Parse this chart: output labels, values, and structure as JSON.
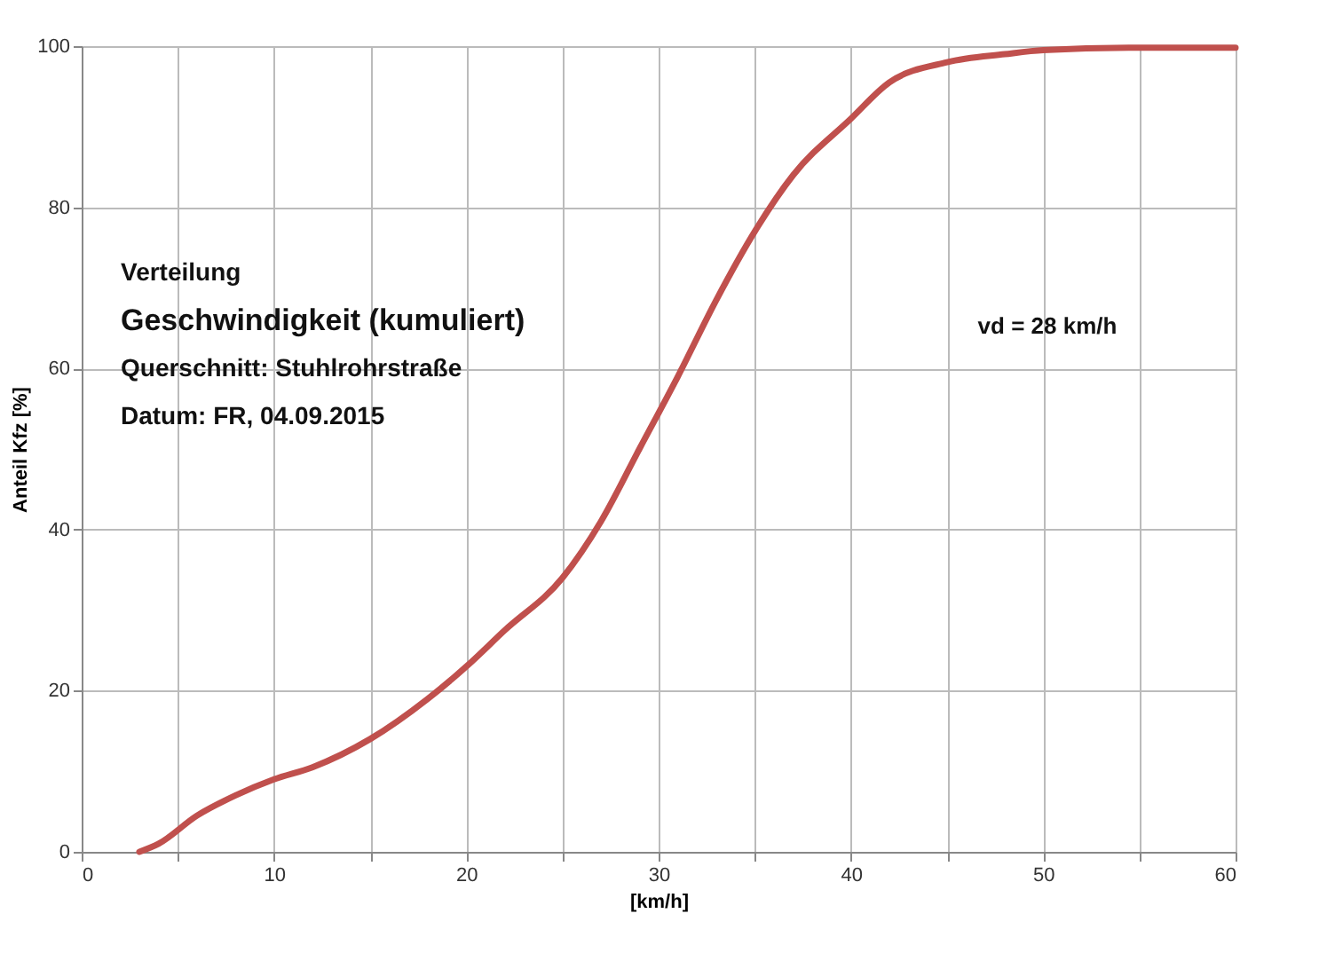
{
  "chart_data": {
    "type": "line",
    "xlabel": "[km/h]",
    "ylabel": "Anteil Kfz [%]",
    "x": [
      3,
      4,
      6,
      8,
      10,
      12,
      15,
      18,
      20,
      22,
      25,
      27,
      29,
      31,
      33,
      35,
      37,
      40,
      42,
      45,
      48,
      50,
      55,
      60
    ],
    "series": [
      {
        "color": "#c0504d",
        "values": [
          0,
          1,
          4.5,
          7,
          9,
          10.5,
          14,
          19,
          23,
          27.5,
          34,
          41,
          50,
          59,
          68.5,
          77,
          84,
          91,
          95.5,
          98,
          99,
          99.5,
          99.8,
          99.8
        ]
      }
    ],
    "xlim": [
      0,
      60
    ],
    "xticks": [
      0,
      {
        "value": 5,
        "label": null
      },
      10,
      {
        "value": 15,
        "label": null
      },
      20,
      {
        "value": 25,
        "label": null
      },
      30,
      {
        "value": 35,
        "label": null
      },
      40,
      {
        "value": 45,
        "label": null
      },
      50,
      {
        "value": 55,
        "label": null
      },
      60
    ],
    "ylim": [
      0,
      100
    ],
    "yticks": [
      0,
      20,
      40,
      60,
      80,
      100
    ],
    "grid": true,
    "marker": "none",
    "line_style": "solid",
    "annotations": [
      "Verteilung",
      "Geschwindigkeit (kumuliert)",
      "Querschnitt:  Stuhlrohrstraße",
      "Datum:  FR, 04.09.2015",
      "vd = 28 km/h"
    ]
  }
}
